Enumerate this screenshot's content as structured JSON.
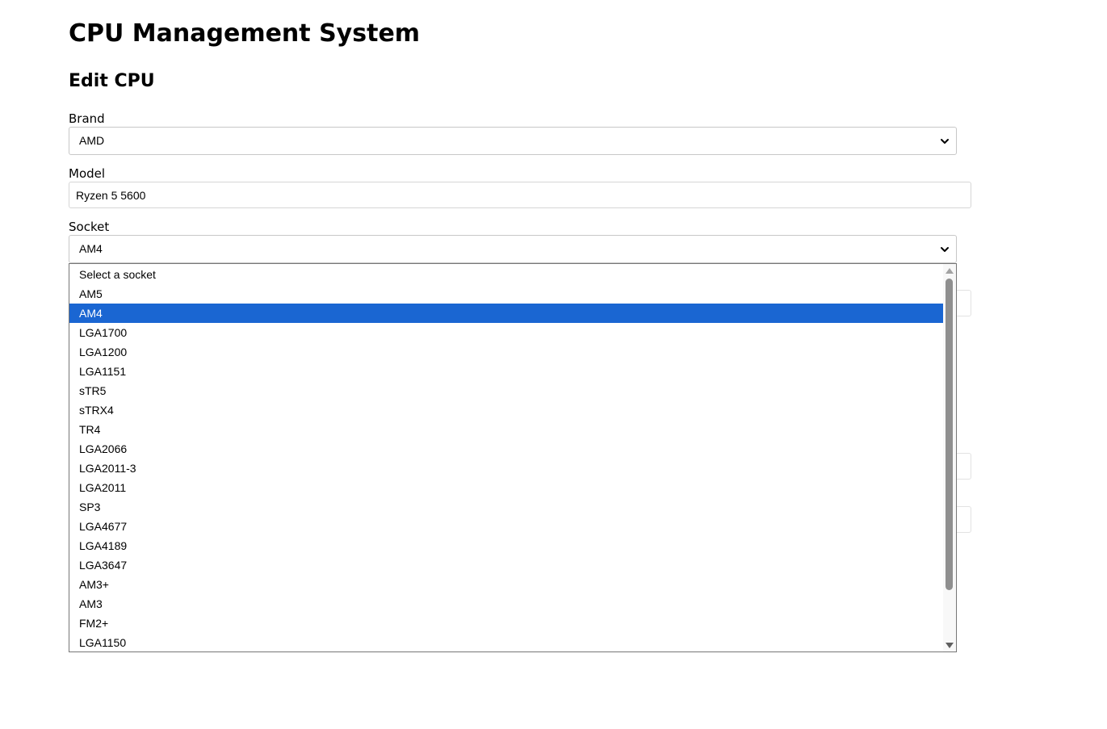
{
  "header": {
    "app_title": "CPU Management System",
    "section_title": "Edit CPU"
  },
  "form": {
    "brand": {
      "label": "Brand",
      "value": "AMD"
    },
    "model": {
      "label": "Model",
      "value": "Ryzen 5 5600"
    },
    "socket": {
      "label": "Socket",
      "value": "AM4",
      "options": [
        "Select a socket",
        "AM5",
        "AM4",
        "LGA1700",
        "LGA1200",
        "LGA1151",
        "sTR5",
        "sTRX4",
        "TR4",
        "LGA2066",
        "LGA2011-3",
        "LGA2011",
        "SP3",
        "LGA4677",
        "LGA4189",
        "LGA3647",
        "AM3+",
        "AM3",
        "FM2+",
        "LGA1150"
      ],
      "selected_option": "AM4"
    }
  },
  "icons": {
    "select_chevron": "chevron-down-icon",
    "scroll_up": "scroll-up-arrow-icon",
    "scroll_down": "scroll-down-arrow-icon"
  },
  "colors": {
    "selected_option_bg": "#1a66d2",
    "selected_option_text": "#ffffff",
    "scroll_thumb": "#8f8f8f"
  }
}
